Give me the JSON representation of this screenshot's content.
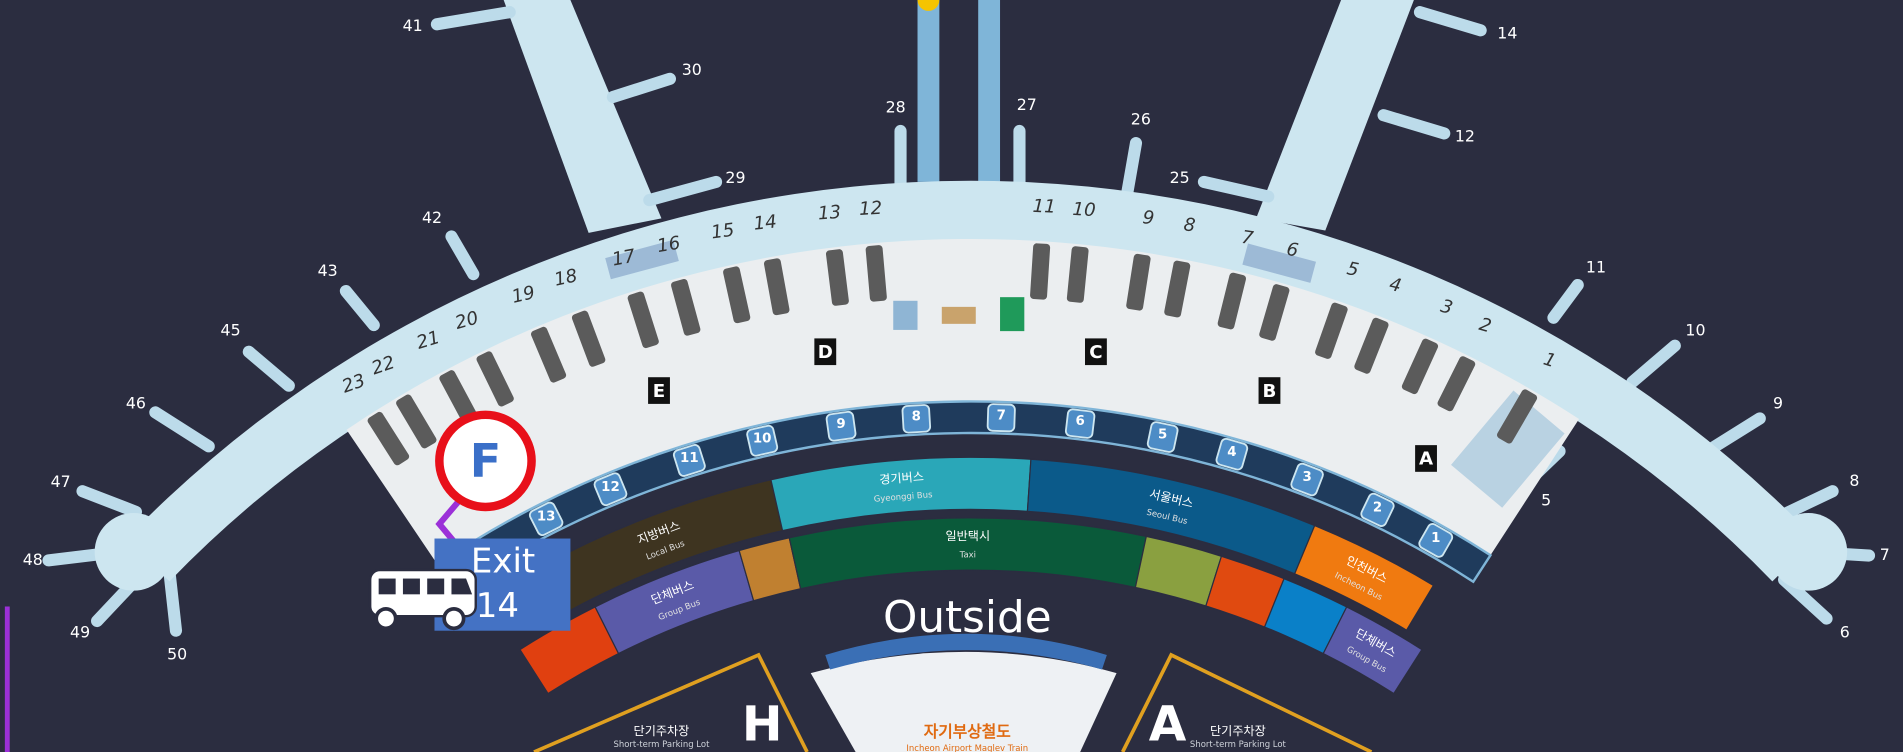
{
  "gates": [
    "41",
    "30",
    "29",
    "42",
    "43",
    "45",
    "46",
    "47",
    "48",
    "49",
    "50",
    "28",
    "27",
    "26",
    "25",
    "12",
    "14",
    "11",
    "10",
    "9",
    "8",
    "7",
    "6",
    "5"
  ],
  "counters": [
    "23",
    "22",
    "21",
    "20",
    "19",
    "18",
    "17",
    "16",
    "15",
    "14",
    "13",
    "12",
    "11",
    "10",
    "9",
    "8",
    "7",
    "6",
    "5",
    "4",
    "3",
    "2",
    "1"
  ],
  "checkin_zones": [
    "E",
    "D",
    "C",
    "B",
    "A"
  ],
  "bus_stops": [
    "13",
    "12",
    "11",
    "10",
    "9",
    "8",
    "7",
    "6",
    "5",
    "4",
    "3",
    "2",
    "1"
  ],
  "bus_zones": [
    {
      "ko": "지방버스",
      "en": "Local Bus"
    },
    {
      "ko": "경기버스",
      "en": "Gyeonggi Bus"
    },
    {
      "ko": "서울버스",
      "en": "Seoul Bus"
    },
    {
      "ko": "인천버스",
      "en": "Incheon Bus"
    },
    {
      "ko": "단체버스",
      "en": "Group Bus"
    },
    {
      "ko": "일반택시",
      "en": "Taxi"
    },
    {
      "ko": "단체버스",
      "en": "Group Bus"
    }
  ],
  "overlay": {
    "zone": "F",
    "exit_line1": "Exit",
    "exit_line2": "14",
    "outside": "Outside"
  },
  "bottom": {
    "maglev_ko": "자기부상철도",
    "maglev_en": "Incheon Airport Maglev Train",
    "parking_left": "H",
    "parking_right": "A",
    "parking_ko": "단기주차장",
    "parking_en": "Short-term Parking Lot"
  }
}
